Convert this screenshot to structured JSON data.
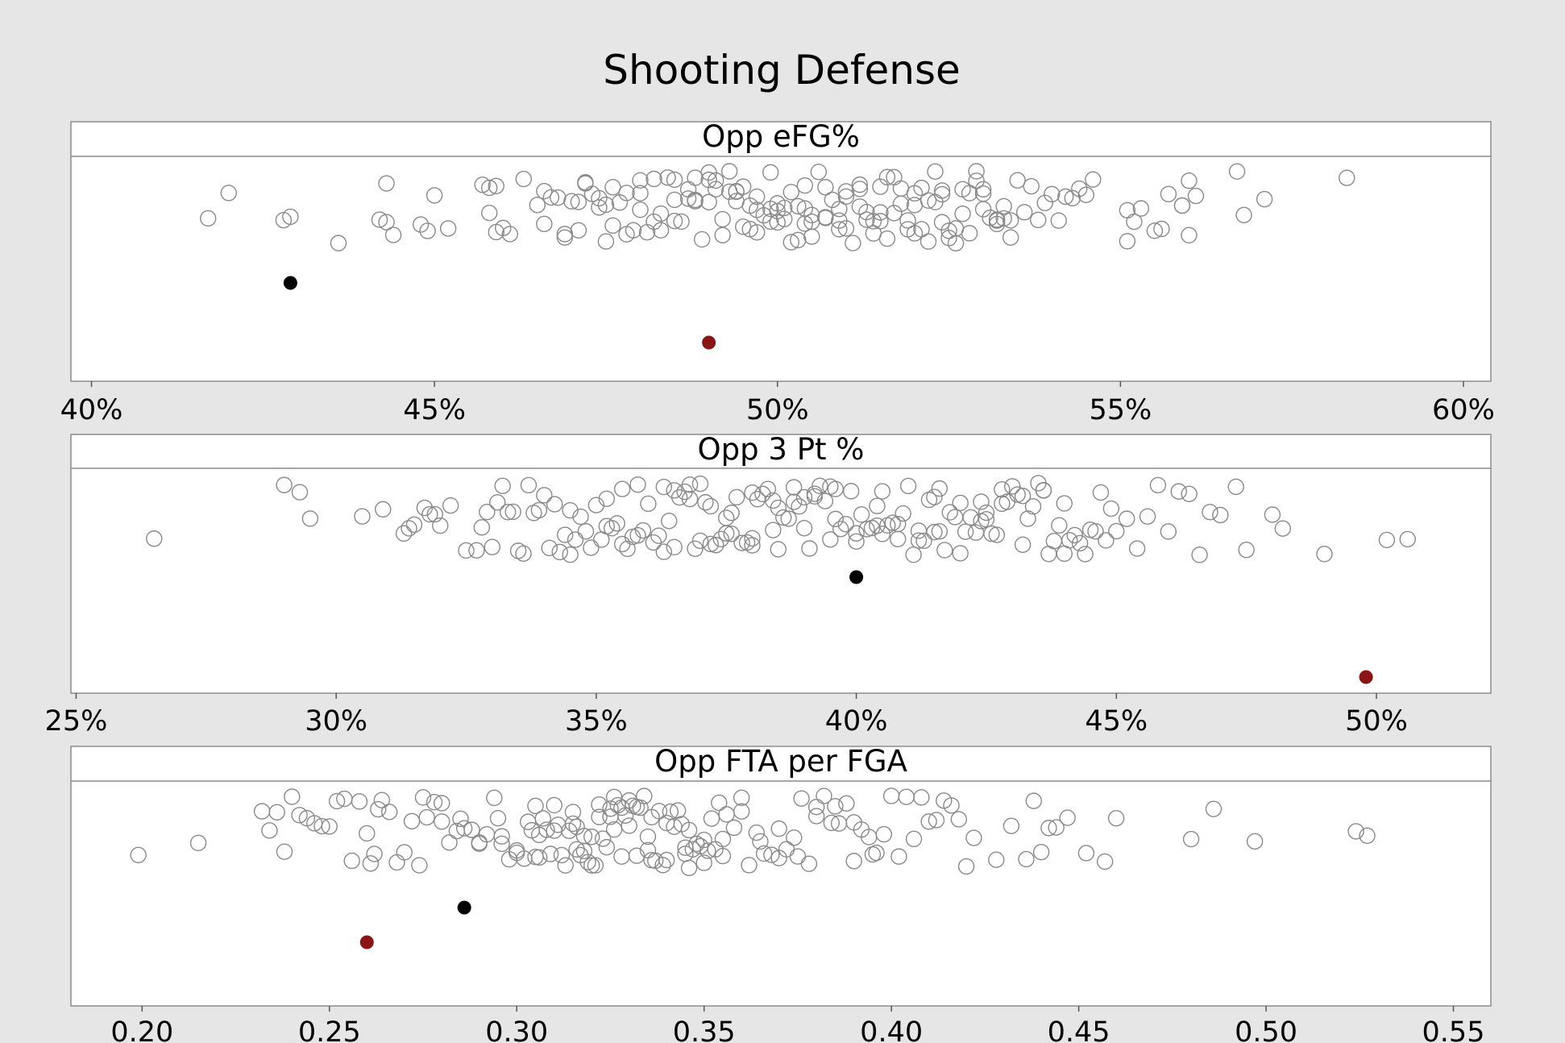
{
  "chart_data": {
    "type": "scatter",
    "title": "Shooting Defense",
    "highlight_colors": {
      "black": "#000000",
      "red": "#8b1414"
    },
    "panels": [
      {
        "title": "Opp eFG%",
        "xlim": [
          0.397,
          0.604
        ],
        "ticks": [
          0.4,
          0.45,
          0.5,
          0.55,
          0.6
        ],
        "tick_labels": [
          "40%",
          "45%",
          "50%",
          "55%",
          "60%"
        ],
        "highlights": [
          {
            "x": 0.429,
            "color": "#000000"
          },
          {
            "x": 0.49,
            "color": "#8b1414"
          }
        ],
        "values": [
          0.417,
          0.42,
          0.429,
          0.436,
          0.428,
          0.442,
          0.443,
          0.444,
          0.443,
          0.449,
          0.448,
          0.45,
          0.452,
          0.457,
          0.458,
          0.458,
          0.459,
          0.46,
          0.461,
          0.459,
          0.463,
          0.465,
          0.466,
          0.467,
          0.466,
          0.468,
          0.469,
          0.469,
          0.47,
          0.471,
          0.471,
          0.472,
          0.472,
          0.473,
          0.474,
          0.474,
          0.475,
          0.475,
          0.476,
          0.476,
          0.477,
          0.478,
          0.479,
          0.48,
          0.48,
          0.481,
          0.482,
          0.482,
          0.483,
          0.484,
          0.485,
          0.485,
          0.486,
          0.487,
          0.487,
          0.488,
          0.488,
          0.489,
          0.49,
          0.49,
          0.491,
          0.491,
          0.492,
          0.493,
          0.493,
          0.494,
          0.494,
          0.495,
          0.496,
          0.496,
          0.497,
          0.497,
          0.498,
          0.499,
          0.499,
          0.5,
          0.5,
          0.501,
          0.501,
          0.502,
          0.503,
          0.503,
          0.504,
          0.504,
          0.505,
          0.505,
          0.506,
          0.507,
          0.507,
          0.508,
          0.509,
          0.509,
          0.51,
          0.51,
          0.511,
          0.512,
          0.512,
          0.513,
          0.513,
          0.514,
          0.515,
          0.515,
          0.516,
          0.516,
          0.517,
          0.518,
          0.518,
          0.519,
          0.52,
          0.52,
          0.521,
          0.521,
          0.522,
          0.523,
          0.523,
          0.524,
          0.524,
          0.525,
          0.526,
          0.526,
          0.527,
          0.528,
          0.528,
          0.529,
          0.53,
          0.53,
          0.531,
          0.532,
          0.532,
          0.533,
          0.533,
          0.534,
          0.534,
          0.535,
          0.536,
          0.537,
          0.538,
          0.539,
          0.54,
          0.541,
          0.542,
          0.543,
          0.544,
          0.545,
          0.546,
          0.551,
          0.551,
          0.552,
          0.553,
          0.555,
          0.556,
          0.557,
          0.559,
          0.559,
          0.56,
          0.56,
          0.561,
          0.567,
          0.568,
          0.571,
          0.583,
          0.48,
          0.485,
          0.49,
          0.495,
          0.5,
          0.505,
          0.51,
          0.515,
          0.52,
          0.525,
          0.53,
          0.488,
          0.492,
          0.497,
          0.502,
          0.507,
          0.512,
          0.517,
          0.522,
          0.527,
          0.532,
          0.478,
          0.483,
          0.494,
          0.499,
          0.504,
          0.509,
          0.514,
          0.519,
          0.524,
          0.529
        ]
      },
      {
        "title": "Opp 3 Pt %",
        "xlim": [
          0.249,
          0.522
        ],
        "ticks": [
          0.25,
          0.3,
          0.35,
          0.4,
          0.45,
          0.5
        ],
        "tick_labels": [
          "25%",
          "30%",
          "35%",
          "40%",
          "45%",
          "50%"
        ],
        "highlights": [
          {
            "x": 0.4,
            "color": "#000000"
          },
          {
            "x": 0.498,
            "color": "#8b1414"
          }
        ],
        "values": [
          0.265,
          0.29,
          0.293,
          0.295,
          0.305,
          0.309,
          0.313,
          0.314,
          0.315,
          0.317,
          0.318,
          0.319,
          0.32,
          0.322,
          0.325,
          0.327,
          0.328,
          0.329,
          0.33,
          0.331,
          0.332,
          0.333,
          0.334,
          0.335,
          0.336,
          0.337,
          0.338,
          0.339,
          0.34,
          0.341,
          0.342,
          0.343,
          0.344,
          0.345,
          0.346,
          0.347,
          0.348,
          0.349,
          0.35,
          0.351,
          0.352,
          0.353,
          0.354,
          0.355,
          0.356,
          0.357,
          0.358,
          0.359,
          0.36,
          0.361,
          0.362,
          0.363,
          0.364,
          0.365,
          0.366,
          0.367,
          0.368,
          0.369,
          0.37,
          0.371,
          0.372,
          0.373,
          0.374,
          0.375,
          0.376,
          0.377,
          0.378,
          0.379,
          0.38,
          0.381,
          0.382,
          0.383,
          0.384,
          0.385,
          0.386,
          0.387,
          0.388,
          0.389,
          0.39,
          0.391,
          0.392,
          0.393,
          0.394,
          0.395,
          0.396,
          0.397,
          0.398,
          0.399,
          0.4,
          0.401,
          0.402,
          0.403,
          0.404,
          0.405,
          0.406,
          0.407,
          0.408,
          0.409,
          0.41,
          0.411,
          0.412,
          0.413,
          0.414,
          0.415,
          0.416,
          0.417,
          0.418,
          0.419,
          0.42,
          0.421,
          0.422,
          0.423,
          0.424,
          0.425,
          0.426,
          0.427,
          0.428,
          0.429,
          0.43,
          0.431,
          0.432,
          0.433,
          0.434,
          0.435,
          0.436,
          0.437,
          0.438,
          0.439,
          0.44,
          0.441,
          0.442,
          0.443,
          0.444,
          0.445,
          0.446,
          0.447,
          0.448,
          0.449,
          0.45,
          0.452,
          0.454,
          0.456,
          0.458,
          0.46,
          0.462,
          0.464,
          0.466,
          0.468,
          0.47,
          0.473,
          0.475,
          0.48,
          0.482,
          0.49,
          0.502,
          0.506,
          0.345,
          0.352,
          0.358,
          0.363,
          0.368,
          0.372,
          0.376,
          0.38,
          0.384,
          0.388,
          0.392,
          0.396,
          0.404,
          0.408,
          0.412,
          0.416,
          0.42,
          0.424,
          0.428,
          0.432,
          0.436,
          0.44,
          0.355,
          0.365,
          0.375,
          0.385,
          0.395,
          0.405,
          0.415,
          0.425,
          0.37,
          0.38,
          0.39,
          0.4
        ]
      },
      {
        "title": "Opp FTA per FGA",
        "xlim": [
          0.181,
          0.56
        ],
        "ticks": [
          0.2,
          0.25,
          0.3,
          0.35,
          0.4,
          0.45,
          0.5,
          0.55
        ],
        "tick_labels": [
          "0.20",
          "0.25",
          "0.30",
          "0.35",
          "0.40",
          "0.45",
          "0.50",
          "0.55"
        ],
        "highlights": [
          {
            "x": 0.286,
            "color": "#000000"
          },
          {
            "x": 0.26,
            "color": "#8b1414"
          }
        ],
        "values": [
          0.199,
          0.215,
          0.232,
          0.234,
          0.236,
          0.238,
          0.24,
          0.242,
          0.244,
          0.246,
          0.248,
          0.25,
          0.252,
          0.254,
          0.256,
          0.258,
          0.26,
          0.261,
          0.262,
          0.263,
          0.264,
          0.266,
          0.268,
          0.27,
          0.272,
          0.274,
          0.276,
          0.278,
          0.28,
          0.282,
          0.284,
          0.286,
          0.288,
          0.29,
          0.292,
          0.294,
          0.296,
          0.298,
          0.3,
          0.302,
          0.303,
          0.304,
          0.305,
          0.306,
          0.307,
          0.308,
          0.309,
          0.31,
          0.311,
          0.312,
          0.313,
          0.314,
          0.315,
          0.316,
          0.317,
          0.318,
          0.319,
          0.32,
          0.321,
          0.322,
          0.323,
          0.324,
          0.325,
          0.326,
          0.327,
          0.328,
          0.329,
          0.33,
          0.331,
          0.332,
          0.333,
          0.334,
          0.335,
          0.336,
          0.337,
          0.338,
          0.339,
          0.34,
          0.341,
          0.342,
          0.343,
          0.344,
          0.345,
          0.346,
          0.347,
          0.348,
          0.349,
          0.35,
          0.351,
          0.352,
          0.353,
          0.354,
          0.355,
          0.356,
          0.358,
          0.36,
          0.362,
          0.364,
          0.366,
          0.368,
          0.37,
          0.372,
          0.374,
          0.376,
          0.378,
          0.38,
          0.382,
          0.384,
          0.386,
          0.388,
          0.39,
          0.392,
          0.394,
          0.396,
          0.398,
          0.4,
          0.402,
          0.404,
          0.406,
          0.408,
          0.41,
          0.412,
          0.414,
          0.416,
          0.418,
          0.42,
          0.422,
          0.428,
          0.432,
          0.436,
          0.438,
          0.44,
          0.442,
          0.444,
          0.447,
          0.452,
          0.457,
          0.46,
          0.48,
          0.486,
          0.497,
          0.524,
          0.527,
          0.275,
          0.285,
          0.295,
          0.305,
          0.315,
          0.325,
          0.335,
          0.345,
          0.355,
          0.365,
          0.375,
          0.385,
          0.395,
          0.28,
          0.29,
          0.3,
          0.31,
          0.32,
          0.33,
          0.34,
          0.35,
          0.36,
          0.37,
          0.38,
          0.39,
          0.296,
          0.306,
          0.316,
          0.326,
          0.336,
          0.346,
          0.318,
          0.322,
          0.328,
          0.332
        ]
      }
    ]
  }
}
